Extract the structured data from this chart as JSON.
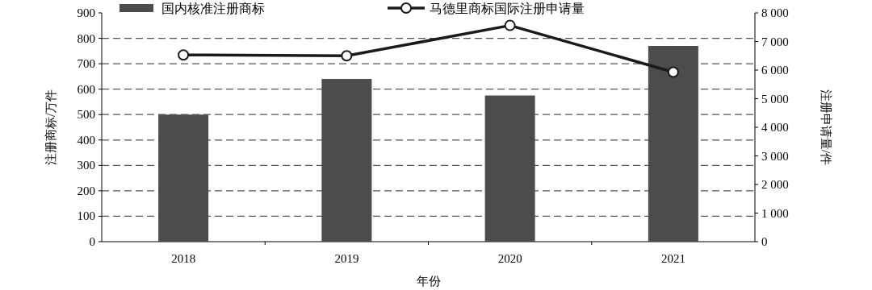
{
  "chart_data": {
    "type": "bar",
    "categories": [
      "2018",
      "2019",
      "2020",
      "2021"
    ],
    "xlabel": "年份",
    "ylabel": "注册商标/万件",
    "y2label": "注册申请量/件",
    "series": [
      {
        "name": "国内核准注册商标",
        "color": "#4d4b4c",
        "values": [
          500,
          640,
          575,
          770
        ]
      },
      {
        "name": "马德里商标国际注册申请量",
        "type": "line",
        "axis": "y2",
        "color": "#1a1a1a",
        "marker": "circle",
        "values": [
          6530,
          6500,
          7560,
          5930
        ]
      }
    ],
    "ylim": [
      0,
      900
    ],
    "yticks": [
      0,
      100,
      200,
      300,
      400,
      500,
      600,
      700,
      800,
      900
    ],
    "y2lim": [
      0,
      8000
    ],
    "y2ticks": [
      0,
      {
        "value": 1000,
        "label": "1 000"
      },
      {
        "value": 2000,
        "label": "2 000"
      },
      {
        "value": 3000,
        "label": "3 000"
      },
      {
        "value": 4000,
        "label": "4 000"
      },
      {
        "value": 5000,
        "label": "5 000"
      },
      {
        "value": 6000,
        "label": "6 000"
      },
      {
        "value": 7000,
        "label": "7 000"
      },
      {
        "value": 8000,
        "label": "8 000"
      }
    ],
    "grid": "y",
    "legend": "top"
  }
}
